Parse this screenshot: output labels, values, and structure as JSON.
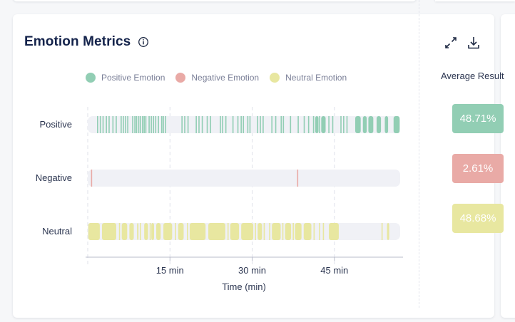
{
  "card": {
    "title": "Emotion Metrics"
  },
  "legend": [
    {
      "label": "Positive Emotion",
      "color": "#92ceb4"
    },
    {
      "label": "Negative Emotion",
      "color": "#e9aaa6"
    },
    {
      "label": "Neutral Emotion",
      "color": "#e8e7a0"
    }
  ],
  "rows": [
    {
      "label": "Positive"
    },
    {
      "label": "Negative"
    },
    {
      "label": "Neutral"
    }
  ],
  "average": {
    "title": "Average Result",
    "badges": [
      {
        "value": "48.71%",
        "color": "#92ceb4"
      },
      {
        "value": "2.61%",
        "color": "#e9aaa6"
      },
      {
        "value": "48.68%",
        "color": "#e8e7a0"
      }
    ]
  },
  "icons": {
    "expand": "expand-icon",
    "download": "download-icon",
    "info": "info-icon"
  },
  "chart_data": {
    "type": "timeline",
    "xlabel": "Time (min)",
    "xlim": [
      0,
      57
    ],
    "xticks": [
      15,
      30,
      45
    ],
    "tick_labels": [
      "15 min",
      "30 min",
      "45 min"
    ],
    "grid": true,
    "track_color": "#f0f1f6",
    "series": [
      {
        "name": "Positive",
        "color": "#92ceb4",
        "events": [
          1.8,
          2.3,
          2.8,
          3.4,
          3.9,
          4.6,
          5.2,
          6.1,
          6.5,
          6.9,
          7.3,
          8.2,
          8.6,
          8.9,
          9.3,
          9.6,
          10.0,
          10.3,
          10.6,
          11.2,
          11.6,
          12.0,
          12.4,
          12.9,
          13.5,
          13.8,
          14.2,
          17.2,
          17.7,
          18.3,
          19.8,
          20.3,
          20.9,
          21.8,
          22.4,
          24.2,
          24.6,
          25.2,
          26.5,
          27.4,
          28.0,
          28.4,
          29.2,
          29.6,
          31.0,
          31.5,
          32.0,
          33.6,
          34.3,
          35.3,
          35.7,
          37.0,
          38.4,
          39.5,
          40.3,
          41.2,
          42.3,
          43.0,
          44.0,
          44.7,
          46.2,
          46.7,
          47.3
        ],
        "blocks": [
          [
            41.5,
            42.1
          ],
          [
            42.6,
            43.4
          ],
          [
            48.8,
            49.8
          ],
          [
            50.2,
            50.9
          ],
          [
            51.2,
            52.1
          ],
          [
            52.7,
            53.5
          ],
          [
            54.2,
            54.8
          ],
          [
            55.8,
            56.9
          ]
        ]
      },
      {
        "name": "Negative",
        "color": "#e9aaa6",
        "events": [
          0.7,
          38.3
        ],
        "blocks": []
      },
      {
        "name": "Neutral",
        "color": "#e8e7a0",
        "events": [
          5.8,
          9.6,
          11.4,
          16.0,
          18.2,
          25.6,
          30.6,
          32.2,
          33.2,
          35.6,
          37.5,
          41.3,
          42.3,
          43.0,
          53.7
        ],
        "blocks": [
          [
            0.1,
            2.2
          ],
          [
            2.6,
            5.2
          ],
          [
            6.2,
            7.2
          ],
          [
            7.6,
            8.4
          ],
          [
            9.0,
            9.2
          ],
          [
            10.3,
            11.0
          ],
          [
            11.6,
            12.1
          ],
          [
            12.5,
            13.3
          ],
          [
            13.8,
            15.4
          ],
          [
            16.5,
            17.5
          ],
          [
            18.6,
            21.5
          ],
          [
            22.0,
            25.1
          ],
          [
            26.0,
            27.6
          ],
          [
            28.0,
            30.2
          ],
          [
            31.0,
            31.8
          ],
          [
            33.6,
            35.2
          ],
          [
            36.0,
            37.1
          ],
          [
            37.8,
            39.0
          ],
          [
            39.4,
            40.8
          ],
          [
            44.0,
            45.8
          ],
          [
            54.6,
            55.0
          ]
        ]
      }
    ]
  }
}
